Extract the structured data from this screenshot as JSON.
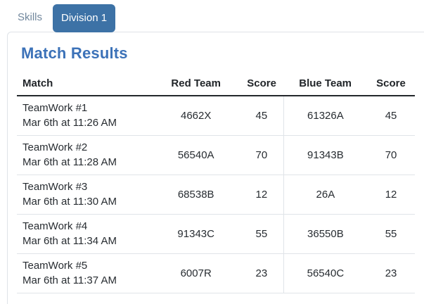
{
  "tabs": [
    {
      "label": "Skills",
      "active": false
    },
    {
      "label": "Division 1",
      "active": true
    }
  ],
  "panel": {
    "title": "Match Results"
  },
  "table": {
    "columns": [
      "Match",
      "Red Team",
      "Score",
      "Blue Team",
      "Score"
    ],
    "rows": [
      {
        "match": "TeamWork #1",
        "time": "Mar 6th at 11:26 AM",
        "red_team": "4662X",
        "red_score": "45",
        "blue_team": "61326A",
        "blue_score": "45"
      },
      {
        "match": "TeamWork #2",
        "time": "Mar 6th at 11:28 AM",
        "red_team": "56540A",
        "red_score": "70",
        "blue_team": "91343B",
        "blue_score": "70"
      },
      {
        "match": "TeamWork #3",
        "time": "Mar 6th at 11:30 AM",
        "red_team": "68538B",
        "red_score": "12",
        "blue_team": "26A",
        "blue_score": "12"
      },
      {
        "match": "TeamWork #4",
        "time": "Mar 6th at 11:34 AM",
        "red_team": "91343C",
        "red_score": "55",
        "blue_team": "36550B",
        "blue_score": "55"
      },
      {
        "match": "TeamWork #5",
        "time": "Mar 6th at 11:37 AM",
        "red_team": "6007R",
        "red_score": "23",
        "blue_team": "56540C",
        "blue_score": "23"
      }
    ]
  },
  "colors": {
    "active_tab_bg": "#3d72a6",
    "inactive_tab_text": "#71879d",
    "heading_text": "#3c72b8",
    "header_rule": "#23272b",
    "row_divider": "#e0e4e8"
  }
}
